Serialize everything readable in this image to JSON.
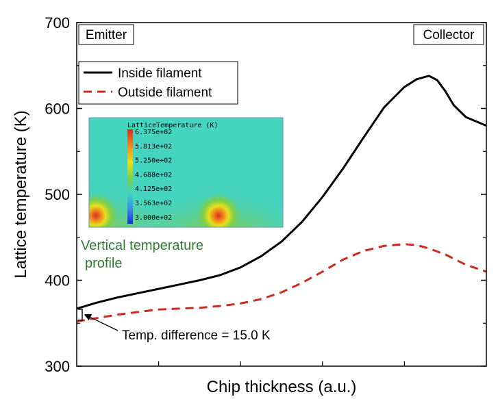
{
  "chart_data": {
    "type": "line",
    "title": "",
    "xlabel": "Chip thickness (a.u.)",
    "ylabel": "Lattice temperature (K)",
    "xlim": [
      0,
      1
    ],
    "ylim": [
      300,
      700
    ],
    "yticks": [
      "300",
      "400",
      "500",
      "600",
      "700"
    ],
    "grid": false,
    "legend_position": "top-left",
    "series": [
      {
        "name": "Inside filament",
        "color": "#000000",
        "style": "solid",
        "x": [
          0,
          0.05,
          0.1,
          0.15,
          0.2,
          0.25,
          0.3,
          0.35,
          0.4,
          0.45,
          0.5,
          0.55,
          0.6,
          0.65,
          0.7,
          0.75,
          0.8,
          0.83,
          0.86,
          0.88,
          0.9,
          0.92,
          0.95,
          1.0
        ],
        "values": [
          367,
          374,
          380,
          385,
          390,
          395,
          400,
          406,
          415,
          428,
          445,
          468,
          497,
          530,
          566,
          601,
          625,
          634,
          638,
          633,
          620,
          604,
          590,
          580
        ]
      },
      {
        "name": "Outside filament",
        "color": "#cc2a1f",
        "style": "dashed",
        "x": [
          0,
          0.05,
          0.1,
          0.15,
          0.2,
          0.25,
          0.3,
          0.35,
          0.4,
          0.45,
          0.5,
          0.55,
          0.6,
          0.65,
          0.7,
          0.75,
          0.8,
          0.83,
          0.86,
          0.9,
          0.95,
          1.0
        ],
        "values": [
          352,
          356,
          360,
          363,
          366,
          367,
          368,
          370,
          373,
          378,
          386,
          397,
          410,
          424,
          434,
          440,
          442,
          441,
          437,
          430,
          418,
          410
        ]
      }
    ],
    "annotations": {
      "left_box": "Emitter",
      "right_box": "Collector",
      "note": "Vertical temperature profile",
      "note_line1": "Vertical temperature",
      "note_line2": "profile",
      "note_color": "#2e7d32",
      "arrow_label": "Temp. difference = 15.0 K"
    },
    "inset": {
      "title": "LatticeTemperature (K)",
      "colorbar_labels": [
        "6.375e+02",
        "5.813e+02",
        "5.250e+02",
        "4.688e+02",
        "4.125e+02",
        "3.563e+02",
        "3.000e+02"
      ]
    }
  }
}
